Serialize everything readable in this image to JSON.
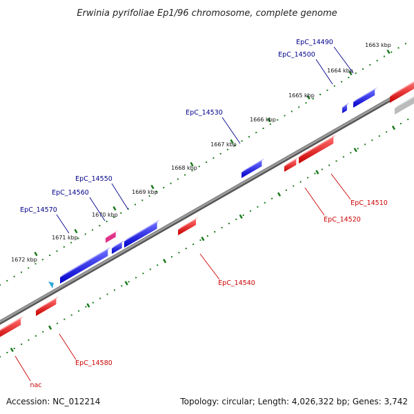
{
  "title": "Erwinia pyrifoliae Ep1/96 chromosome, complete genome",
  "footer": {
    "accession": "Accession: NC_012214",
    "summary": "Topology: circular; Length: 4,026,322 bp; Genes: 3,742"
  },
  "colors": {
    "forward": "#0000ee",
    "reverse": "#ee0000",
    "label_forward": "#00008b",
    "label_reverse": "#cc0000",
    "tick": "#1a7a1a",
    "backbone": "#888888",
    "magenta": "#e0338a",
    "grey": "#bbbbbb",
    "cyan": "#33aadd"
  },
  "ruler_labels": [
    "1663 kbp",
    "1664 kbp",
    "1665 kbp",
    "1666 kbp",
    "1667 kbp",
    "1668 kbp",
    "1669 kbp",
    "1670 kbp",
    "1671 kbp",
    "1672 kbp"
  ],
  "forward_genes": [
    "EpC_14490",
    "EpC_14500",
    "EpC_14530",
    "EpC_14550",
    "EpC_14560",
    "EpC_14570"
  ],
  "reverse_genes": [
    "EpC_14510",
    "EpC_14520",
    "EpC_14540",
    "EpC_14580",
    "nac"
  ]
}
